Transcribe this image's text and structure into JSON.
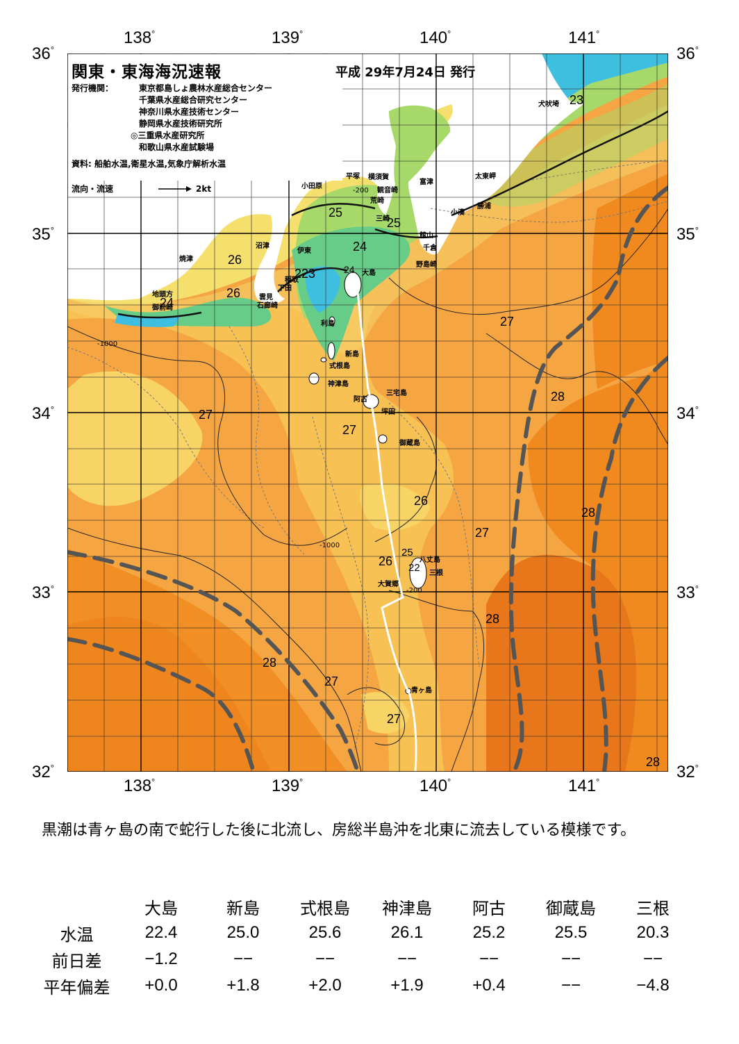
{
  "header": {
    "title": "関東・東海海況速報",
    "date": "平成 29年7月24日 発行",
    "issuer_label": "発行機関：",
    "issuers": [
      "東京都島しょ農林水産総合センター",
      "千葉県水産総合研究センター",
      "神奈川県水産技術センター",
      "静岡県水産技術研究所",
      "◎三重県水産研究所",
      "和歌山県水産試験場"
    ],
    "source": "資料: 船舶水温,衛星水温,気象庁解析水温",
    "legend_label": "流向・流速",
    "legend_speed": "2kt"
  },
  "axes": {
    "lon_top": [
      "138",
      "139",
      "140",
      "141"
    ],
    "lon_bottom": [
      "138",
      "139",
      "140",
      "141"
    ],
    "lat_left": [
      "36",
      "35",
      "34",
      "33",
      "32"
    ],
    "lat_right": [
      "36",
      "35",
      "34",
      "33",
      "32"
    ],
    "degree": "°"
  },
  "map": {
    "colors": {
      "warm_28": "#f08a1e",
      "warm_dark": "#e06a14",
      "band_27": "#f5a642",
      "band_26": "#f8c45a",
      "band_25": "#f5e06e",
      "band_24": "#a6d96a",
      "band_23": "#66cc88",
      "band_22": "#66ccff",
      "land": "#ffffff",
      "kuroshio_axis": "#555555",
      "track": "#ffffff"
    },
    "temp_labels": [
      "23",
      "25",
      "25",
      "24",
      "26",
      "26",
      "223",
      "24",
      "24",
      "27",
      "28",
      "27",
      "27",
      "26",
      "28",
      "27",
      "26",
      "25",
      "22",
      "28",
      "28",
      "27",
      "27",
      "28"
    ],
    "place_names": [
      "犬吠埼",
      "太東岬",
      "勝浦",
      "小湊",
      "富津",
      "横須賀",
      "平塚",
      "観音崎",
      "荒崎",
      "小田原",
      "三崎",
      "館山",
      "千倉",
      "野島崎",
      "沼津",
      "伊東",
      "焼津",
      "大島",
      "稲取",
      "下田",
      "雲見",
      "石廊崎",
      "御前崎",
      "地頭方",
      "利島",
      "新島",
      "式根島",
      "神津島",
      "三宅島",
      "阿古",
      "坪田",
      "御蔵島",
      "八丈島",
      "三根",
      "大賀郷",
      "青ヶ島"
    ],
    "depth_labels": [
      "-200",
      "-1000"
    ]
  },
  "summary": "黒潮は青ヶ島の南で蛇行した後に北流し、房総半島沖を北東に流去している模様です。",
  "table": {
    "columns": [
      "大島",
      "新島",
      "式根島",
      "神津島",
      "阿古",
      "御蔵島",
      "三根"
    ],
    "rows": [
      {
        "label": "水温",
        "values": [
          "22.4",
          "25.0",
          "25.6",
          "26.1",
          "25.2",
          "25.5",
          "20.3"
        ]
      },
      {
        "label": "前日差",
        "values": [
          "−1.2",
          "−−",
          "−−",
          "−−",
          "−−",
          "−−",
          "−−"
        ]
      },
      {
        "label": "平年偏差",
        "values": [
          "+0.0",
          "+1.8",
          "+2.0",
          "+1.9",
          "+0.4",
          "−−",
          "−4.8"
        ]
      }
    ]
  }
}
